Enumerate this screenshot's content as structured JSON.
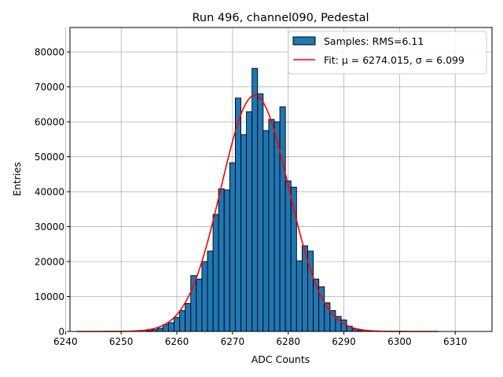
{
  "chart_data": {
    "type": "bar",
    "title": "Run 496, channel090, Pedestal",
    "xlabel": "ADC Counts",
    "ylabel": "Entries",
    "xlim": [
      6240.8,
      6316.6
    ],
    "ylim": [
      0,
      87000
    ],
    "grid": true,
    "legend_position": "top-right",
    "xticks": [
      6240,
      6250,
      6260,
      6270,
      6280,
      6290,
      6300,
      6310
    ],
    "yticks": [
      0,
      10000,
      20000,
      30000,
      40000,
      50000,
      60000,
      70000,
      80000
    ],
    "bin_width": 1,
    "histogram": {
      "name": "Samples: RMS=6.11",
      "color": "#1f77b4",
      "bin_centers": [
        6255,
        6256,
        6257,
        6258,
        6259,
        6260,
        6261,
        6262,
        6263,
        6264,
        6265,
        6266,
        6267,
        6268,
        6269,
        6270,
        6271,
        6272,
        6273,
        6274,
        6275,
        6276,
        6277,
        6278,
        6279,
        6280,
        6281,
        6282,
        6283,
        6284,
        6285,
        6286,
        6287,
        6288,
        6289,
        6290,
        6291,
        6292,
        6293
      ],
      "counts": [
        200,
        500,
        900,
        2000,
        2500,
        4000,
        6000,
        8000,
        16000,
        15000,
        20000,
        23000,
        33500,
        40800,
        40500,
        48300,
        66800,
        56300,
        62900,
        75300,
        68000,
        57500,
        60700,
        60000,
        64300,
        43100,
        41300,
        20200,
        24500,
        23000,
        15000,
        12800,
        8200,
        6000,
        4300,
        3300,
        1500,
        700,
        300
      ]
    },
    "fit": {
      "name": "Fit: μ = 6274.015, σ = 6.099",
      "color": "#ff0000",
      "mu": 6274.015,
      "sigma": 6.099,
      "amplitude": 67600,
      "x_range": [
        6242,
        6307
      ]
    }
  }
}
